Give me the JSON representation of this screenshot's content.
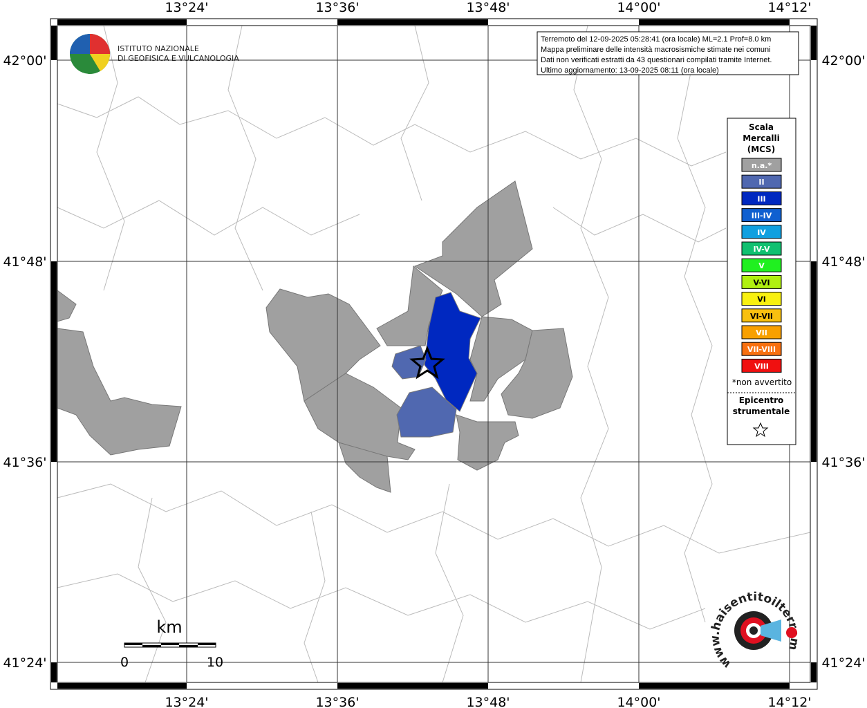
{
  "header": {
    "lines": [
      "Terremoto del 12-09-2025 05:28:41 (ora locale) ML=2.1 Prof=8.0 km",
      "Mappa preliminare delle intensità macrosismiche stimate nei comuni",
      "Dati non verificati estratti da 43 questionari compilati tramite Internet.",
      "Ultimo aggiornamento: 13-09-2025 08:11 (ora locale)"
    ]
  },
  "logo": {
    "line1": "ISTITUTO NAZIONALE",
    "line2": "DI GEOFISICA E VULCANOLOGIA"
  },
  "axes": {
    "longitudes": [
      "13°24'",
      "13°36'",
      "13°48'",
      "14°00'",
      "14°12'"
    ],
    "latitudes": [
      "42°00'",
      "41°48'",
      "41°36'",
      "41°24'"
    ]
  },
  "legend": {
    "title": [
      "Scala",
      "Mercalli",
      "(MCS)"
    ],
    "items": [
      {
        "label": "n.a.*",
        "color": "#a0a0a0"
      },
      {
        "label": "II",
        "color": "#5068b0"
      },
      {
        "label": "III",
        "color": "#0028c0"
      },
      {
        "label": "III-IV",
        "color": "#1060d0"
      },
      {
        "label": "IV",
        "color": "#10a0e0"
      },
      {
        "label": "IV-V",
        "color": "#10c070"
      },
      {
        "label": "V",
        "color": "#20f020"
      },
      {
        "label": "V-VI",
        "color": "#b0f010"
      },
      {
        "label": "VI",
        "color": "#f8f010"
      },
      {
        "label": "VI-VII",
        "color": "#f8c010"
      },
      {
        "label": "VII",
        "color": "#f8a000"
      },
      {
        "label": "VII-VIII",
        "color": "#f87010"
      },
      {
        "label": "VIII",
        "color": "#f01010"
      }
    ],
    "note": "*non avvertito",
    "epicenter": [
      "Epicentro",
      "strumentale"
    ]
  },
  "scale_bar": {
    "unit": "km",
    "labels": [
      "0",
      "10"
    ]
  },
  "watermark": "www.haisentitoilterremoto.it"
}
